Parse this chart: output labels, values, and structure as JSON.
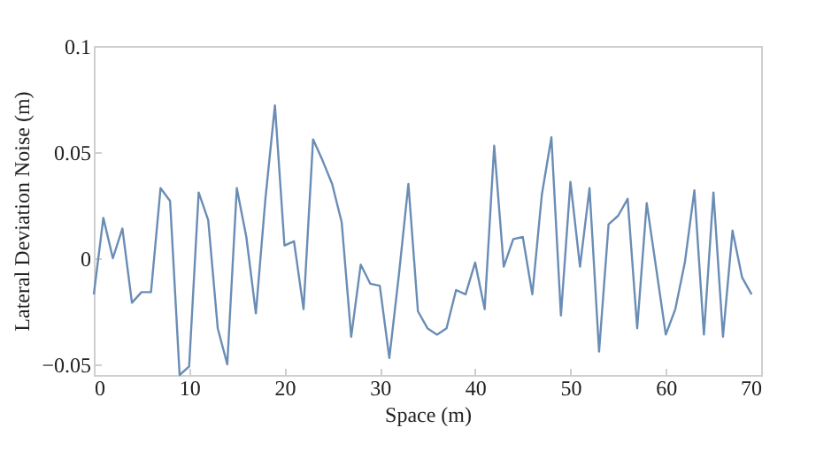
{
  "chart_data": {
    "type": "line",
    "xlabel": "Space (m)",
    "ylabel": "Lateral Deviation Noise (m)",
    "x": [
      0,
      1,
      2,
      3,
      4,
      5,
      6,
      7,
      8,
      9,
      10,
      11,
      12,
      13,
      14,
      15,
      16,
      17,
      18,
      19,
      20,
      21,
      22,
      23,
      24,
      25,
      26,
      27,
      28,
      29,
      30,
      31,
      32,
      33,
      34,
      35,
      36,
      37,
      38,
      39,
      40,
      41,
      42,
      43,
      44,
      45,
      46,
      47,
      48,
      49,
      50,
      51,
      52,
      53,
      54,
      55,
      56,
      57,
      58,
      59,
      60,
      61,
      62,
      63,
      64,
      65,
      66,
      67,
      68,
      69
    ],
    "series": [
      {
        "color": "#6a8db5",
        "values": [
          -0.017,
          0.019,
          0.0,
          0.014,
          -0.021,
          -0.016,
          -0.016,
          0.033,
          0.027,
          -0.055,
          -0.051,
          0.031,
          0.018,
          -0.033,
          -0.05,
          0.033,
          0.01,
          -0.026,
          0.028,
          0.072,
          0.006,
          0.008,
          -0.024,
          0.056,
          0.046,
          0.035,
          0.017,
          -0.037,
          -0.003,
          -0.012,
          -0.013,
          -0.047,
          -0.008,
          0.035,
          -0.025,
          -0.033,
          -0.036,
          -0.033,
          -0.015,
          -0.017,
          -0.002,
          -0.024,
          0.053,
          -0.004,
          0.009,
          0.01,
          -0.017,
          0.03,
          0.057,
          -0.027,
          0.036,
          -0.004,
          0.033,
          -0.044,
          0.016,
          0.02,
          0.028,
          -0.033,
          0.026,
          -0.005,
          -0.036,
          -0.024,
          -0.002,
          0.032,
          -0.036,
          0.031,
          -0.037,
          0.013,
          -0.009,
          -0.017
        ]
      }
    ],
    "xlim": [
      0,
      70
    ],
    "xticks": [
      0,
      10,
      20,
      30,
      40,
      50,
      60,
      70
    ],
    "ylim": [
      -0.055,
      0.1
    ],
    "yticks": [
      -0.05,
      0,
      0.05,
      0.1
    ],
    "grid": false,
    "line_style": "solid",
    "marker": "none"
  }
}
